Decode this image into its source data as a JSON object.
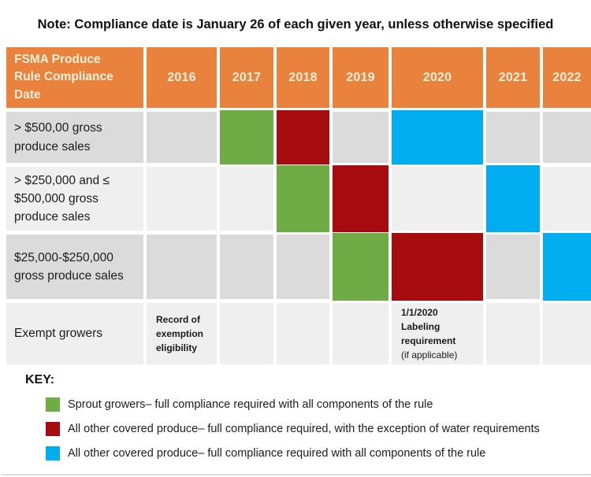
{
  "note": "Note: Compliance date is January 26 of each given year, unless otherwise specified",
  "colors": {
    "orange": "#E8823C",
    "header_text": "#FAF0DB",
    "green": "#6FAC46",
    "red": "#A60C0F",
    "blue": "#00AEEF",
    "row_dark": "#DBDBDB",
    "row_light": "#EFEFEF"
  },
  "chart_data": {
    "type": "table",
    "title": "FSMA Produce Rule Compliance Date",
    "note": "Note: Compliance date is January 26 of each given year, unless otherwise specified",
    "columns": [
      "2016",
      "2017",
      "2018",
      "2019",
      "2020",
      "2021",
      "2022"
    ],
    "rows": [
      {
        "label": "> $500,00 gross produce sales",
        "2017": "sprout-growers",
        "2018": "all-other-except-water",
        "2020": "all-other-full"
      },
      {
        "label": "> $250,000 and ≤ $500,000 gross produce sales",
        "2018": "sprout-growers",
        "2019": "all-other-except-water",
        "2021": "all-other-full"
      },
      {
        "label": "$25,000-$250,000 gross produce sales",
        "2019": "sprout-growers",
        "2020": "all-other-except-water",
        "2022": "all-other-full"
      },
      {
        "label": "Exempt growers",
        "2016": "Record of exemption eligibility",
        "2020": "1/1/2020 Labeling requirement (if applicable)"
      }
    ],
    "legend_position": "bottom"
  },
  "table": {
    "header": {
      "title": "FSMA Produce Rule Compliance Date",
      "years": [
        "2016",
        "2017",
        "2018",
        "2019",
        "2020",
        "2021",
        "2022"
      ]
    },
    "rows": [
      {
        "label": "> $500,00 gross produce sales",
        "cells": [
          {
            "fill": "none"
          },
          {
            "fill": "green"
          },
          {
            "fill": "red"
          },
          {
            "fill": "none"
          },
          {
            "fill": "blue"
          },
          {
            "fill": "none"
          },
          {
            "fill": "none"
          }
        ]
      },
      {
        "label": "> $250,000 and ≤ $500,000 gross produce sales",
        "cells": [
          {
            "fill": "none"
          },
          {
            "fill": "none"
          },
          {
            "fill": "green"
          },
          {
            "fill": "red"
          },
          {
            "fill": "none"
          },
          {
            "fill": "blue"
          },
          {
            "fill": "none"
          }
        ]
      },
      {
        "label": "$25,000-$250,000 gross produce sales",
        "cells": [
          {
            "fill": "none"
          },
          {
            "fill": "none"
          },
          {
            "fill": "none"
          },
          {
            "fill": "green"
          },
          {
            "fill": "red"
          },
          {
            "fill": "none"
          },
          {
            "fill": "blue"
          }
        ]
      },
      {
        "label": "Exempt growers",
        "cells": [
          {
            "fill": "none",
            "bold_note": "Record of exemption eligibility"
          },
          {
            "fill": "none"
          },
          {
            "fill": "none"
          },
          {
            "fill": "none"
          },
          {
            "fill": "none",
            "bold_note": "1/1/2020 Labeling requirement",
            "note": "(if applicable)"
          },
          {
            "fill": "none"
          },
          {
            "fill": "none"
          }
        ]
      }
    ]
  },
  "key": {
    "title": "KEY:",
    "items": [
      {
        "color": "green",
        "label": "Sprout growers– full compliance required with all components of the rule"
      },
      {
        "color": "red",
        "label": "All other covered produce– full compliance required, with the exception of water requirements"
      },
      {
        "color": "blue",
        "label": "All other covered produce– full compliance required with all components of the rule"
      }
    ]
  }
}
